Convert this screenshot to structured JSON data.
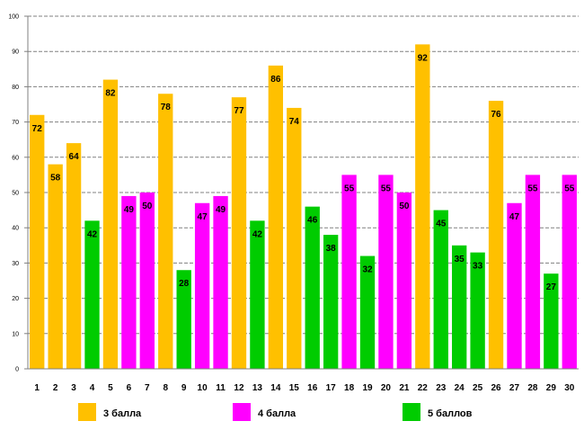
{
  "chart_data": {
    "type": "bar",
    "title": "",
    "xlabel": "",
    "ylabel": "",
    "ylim": [
      0,
      100
    ],
    "yticks": [
      0,
      10,
      20,
      30,
      40,
      50,
      60,
      70,
      80,
      90,
      100
    ],
    "grid": true,
    "categories": [
      "1",
      "2",
      "3",
      "4",
      "5",
      "6",
      "7",
      "8",
      "9",
      "10",
      "11",
      "12",
      "13",
      "14",
      "15",
      "16",
      "17",
      "18",
      "19",
      "20",
      "21",
      "22",
      "23",
      "24",
      "25",
      "26",
      "27",
      "28",
      "29",
      "30"
    ],
    "values": [
      72,
      58,
      64,
      42,
      82,
      49,
      50,
      78,
      28,
      47,
      49,
      77,
      42,
      86,
      74,
      46,
      38,
      55,
      32,
      55,
      50,
      92,
      45,
      35,
      33,
      76,
      47,
      55,
      27,
      55
    ],
    "groups": [
      "3",
      "3",
      "3",
      "5",
      "3",
      "4",
      "4",
      "3",
      "5",
      "4",
      "4",
      "3",
      "5",
      "3",
      "3",
      "5",
      "5",
      "4",
      "5",
      "4",
      "4",
      "3",
      "5",
      "5",
      "5",
      "3",
      "4",
      "4",
      "5",
      "4"
    ],
    "legend": [
      {
        "key": "3",
        "label": "3 балла",
        "color": "#ffc000"
      },
      {
        "key": "4",
        "label": "4 балла",
        "color": "#ff00ff"
      },
      {
        "key": "5",
        "label": "5 баллов",
        "color": "#00cc00"
      }
    ],
    "legend_position": "bottom"
  }
}
